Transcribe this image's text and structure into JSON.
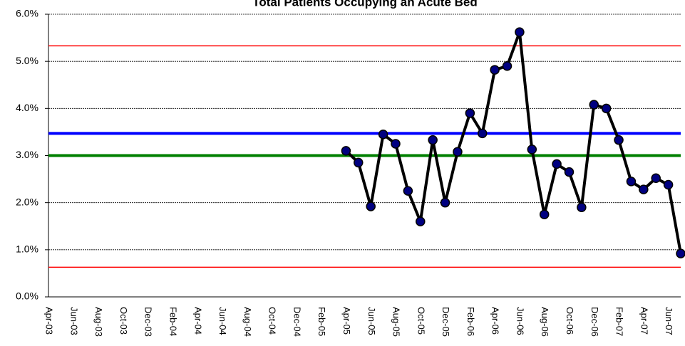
{
  "chart_data": {
    "type": "line",
    "title": "Total Patients Occupying an Acute Bed",
    "categories": [
      "Apr-03",
      null,
      "Jun-03",
      null,
      "Aug-03",
      null,
      "Oct-03",
      null,
      "Dec-03",
      null,
      "Feb-04",
      null,
      "Apr-04",
      null,
      "Jun-04",
      null,
      "Aug-04",
      null,
      "Oct-04",
      null,
      "Dec-04",
      null,
      "Feb-05",
      null,
      "Apr-05",
      null,
      "Jun-05",
      null,
      "Aug-05",
      null,
      "Oct-05",
      null,
      "Dec-05",
      null,
      "Feb-06",
      null,
      "Apr-06",
      null,
      "Jun-06",
      null,
      "Aug-06",
      null,
      "Oct-06",
      null,
      "Dec-06",
      null,
      "Feb-07",
      null,
      "Apr-07",
      null,
      "Jun-07",
      null
    ],
    "series": [
      {
        "color": "#000000",
        "marker_color": "#000080",
        "values": [
          null,
          null,
          null,
          null,
          null,
          null,
          null,
          null,
          null,
          null,
          null,
          null,
          null,
          null,
          null,
          null,
          null,
          null,
          null,
          null,
          null,
          null,
          null,
          null,
          3.1,
          2.85,
          1.92,
          3.45,
          3.25,
          2.25,
          1.6,
          3.33,
          2.0,
          3.08,
          3.9,
          3.47,
          4.82,
          4.9,
          5.62,
          3.13,
          1.75,
          2.82,
          2.65,
          1.9,
          4.08,
          4.0,
          3.33,
          2.45,
          2.28,
          2.52,
          2.38,
          0.92
        ]
      }
    ],
    "reference_lines": [
      {
        "value": 5.33,
        "color": "#ff0000",
        "width": 1.5
      },
      {
        "value": 3.47,
        "color": "#0000ff",
        "width": 4
      },
      {
        "value": 3.0,
        "color": "#008000",
        "width": 4
      },
      {
        "value": 0.63,
        "color": "#ff0000",
        "width": 1.5
      }
    ],
    "ylim": [
      0,
      6
    ],
    "yticks": [
      {
        "value": 0,
        "label": "0.0%"
      },
      {
        "value": 1,
        "label": "1.0%"
      },
      {
        "value": 2,
        "label": "2.0%"
      },
      {
        "value": 3,
        "label": "3.0%"
      },
      {
        "value": 4,
        "label": "4.0%"
      },
      {
        "value": 5,
        "label": "5.0%"
      },
      {
        "value": 6,
        "label": "6.0%"
      }
    ],
    "grid": true
  }
}
